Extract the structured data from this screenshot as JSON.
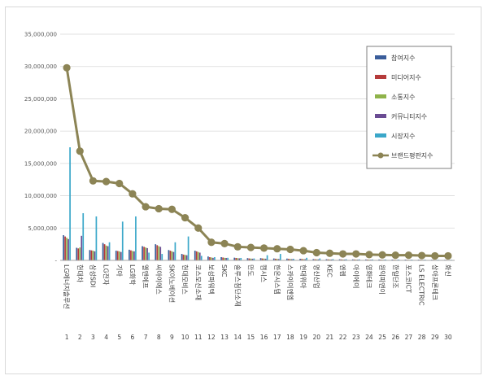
{
  "chart_data": {
    "type": "bar",
    "title": "",
    "xlabel": "",
    "ylabel": "",
    "ylim": [
      0,
      35000000
    ],
    "yticks": [
      0,
      5000000,
      10000000,
      15000000,
      20000000,
      25000000,
      30000000,
      35000000
    ],
    "ytick_labels": [
      "-",
      "5,000,000",
      "10,000,000",
      "15,000,000",
      "20,000,000",
      "25,000,000",
      "30,000,000",
      "35,000,000"
    ],
    "grid": true,
    "legend_position": "top-right",
    "ranks": [
      "1",
      "2",
      "3",
      "4",
      "5",
      "6",
      "7",
      "8",
      "9",
      "10",
      "11",
      "12",
      "13",
      "14",
      "15",
      "16",
      "17",
      "18",
      "19",
      "20",
      "21",
      "22",
      "23",
      "24",
      "25",
      "26",
      "27",
      "28",
      "29",
      "30"
    ],
    "categories": [
      "LG에너지솔루션",
      "현대차",
      "삼성SDI",
      "LG전자",
      "기아",
      "LG화학",
      "엘앤에프",
      "씨아이에스",
      "SK이노베이션",
      "현대모비스",
      "코스모신소재",
      "보성파워텍",
      "SKC",
      "솔루스첨단소재",
      "만도",
      "캠시스",
      "한온시스템",
      "스카이이엔엠",
      "현대위아",
      "명신산업",
      "KEC",
      "엔켐",
      "아이에이",
      "영화테크",
      "원익피앤이",
      "한일단조",
      "포스코ICT",
      "LS ELECTRIC",
      "상아프론테크",
      "화신"
    ],
    "series": [
      {
        "name": "참여지수",
        "kind": "bar",
        "color": "#3a5d9a",
        "values": [
          3900000,
          1950000,
          1600000,
          2700000,
          1500000,
          1650000,
          2200000,
          2500000,
          1600000,
          1000000,
          1500000,
          600000,
          500000,
          420000,
          350000,
          350000,
          300000,
          280000,
          250000,
          200000,
          180000,
          170000,
          160000,
          150000,
          140000,
          130000,
          120000,
          110000,
          100000,
          90000
        ]
      },
      {
        "name": "미디어지수",
        "kind": "bar",
        "color": "#b53b3b",
        "values": [
          3700000,
          1850000,
          1550000,
          2500000,
          1450000,
          1550000,
          2100000,
          2350000,
          1500000,
          900000,
          1400000,
          500000,
          450000,
          380000,
          300000,
          300000,
          260000,
          240000,
          220000,
          180000,
          160000,
          150000,
          140000,
          130000,
          120000,
          110000,
          100000,
          100000,
          90000,
          80000
        ]
      },
      {
        "name": "소통지수",
        "kind": "bar",
        "color": "#8fb34a",
        "values": [
          3500000,
          2000000,
          1500000,
          2300000,
          1400000,
          1450000,
          2000000,
          2200000,
          1400000,
          850000,
          1300000,
          450000,
          400000,
          350000,
          280000,
          280000,
          240000,
          220000,
          200000,
          170000,
          150000,
          140000,
          130000,
          120000,
          110000,
          100000,
          90000,
          90000,
          80000,
          70000
        ]
      },
      {
        "name": "커뮤니티지수",
        "kind": "bar",
        "color": "#6a4c93",
        "values": [
          3300000,
          3800000,
          1400000,
          2200000,
          1300000,
          1400000,
          1900000,
          2100000,
          1300000,
          800000,
          1200000,
          400000,
          380000,
          320000,
          260000,
          260000,
          220000,
          200000,
          190000,
          160000,
          140000,
          130000,
          120000,
          110000,
          100000,
          90000,
          85000,
          80000,
          75000,
          65000
        ]
      },
      {
        "name": "시장지수",
        "kind": "bar",
        "color": "#3aa7c9",
        "values": [
          17500000,
          7300000,
          6800000,
          2800000,
          6000000,
          6800000,
          1200000,
          1000000,
          2800000,
          3700000,
          700000,
          500000,
          400000,
          380000,
          300000,
          800000,
          1000000,
          250000,
          400000,
          300000,
          200000,
          180000,
          160000,
          150000,
          140000,
          130000,
          120000,
          110000,
          100000,
          90000
        ]
      },
      {
        "name": "브랜드평판지수",
        "kind": "line",
        "color": "#8c8455",
        "values": [
          29800000,
          16900000,
          12300000,
          12200000,
          11900000,
          10300000,
          8300000,
          8000000,
          7900000,
          6600000,
          5000000,
          2800000,
          2600000,
          2100000,
          2000000,
          1900000,
          1800000,
          1700000,
          1500000,
          1200000,
          1100000,
          1000000,
          1000000,
          900000,
          850000,
          800000,
          800000,
          750000,
          700000,
          700000
        ]
      }
    ]
  }
}
